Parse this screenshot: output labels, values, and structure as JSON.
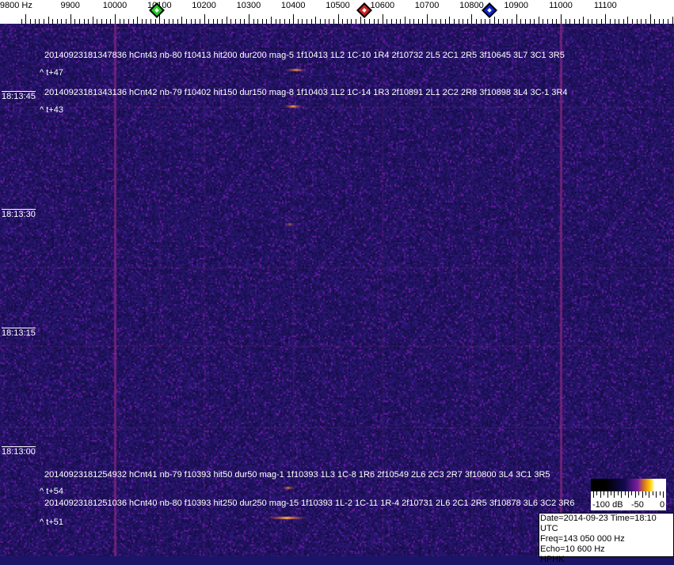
{
  "chart_data": {
    "type": "heatmap",
    "title": "",
    "x_axis": {
      "unit": "Hz",
      "range": [
        9780,
        11280
      ],
      "tick_labels": [
        "9800 Hz",
        "9900",
        "10000",
        "10100",
        "10200",
        "10300",
        "10400",
        "10500",
        "10600",
        "10700",
        "10800",
        "10900",
        "11000",
        "11100"
      ],
      "tick_values": [
        9800,
        9900,
        10000,
        10100,
        10200,
        10300,
        10400,
        10500,
        10600,
        10700,
        10800,
        10900,
        11000,
        11100
      ]
    },
    "y_axis": {
      "tick_labels": [
        "18:13:45",
        "18:13:30",
        "18:13:15",
        "18:13:00"
      ]
    },
    "markers": [
      {
        "freq": 10095,
        "color": "#22cc22"
      },
      {
        "freq": 10560,
        "color": "#cc2222"
      },
      {
        "freq": 10840,
        "color": "#1122cc"
      }
    ],
    "colorbar": {
      "labels": [
        "-100 dB",
        "-50",
        "0"
      ],
      "range_db": [
        -100,
        0
      ]
    },
    "colors": {
      "background": "#1c1466",
      "line": "#7a2a8a",
      "echo": "#ffa040"
    }
  },
  "annotations": [
    {
      "text": "20140923181347836 hCnt43 nb-80 f10413 hit200 dur200 mag-5 1f10413 1L2 1C-10 1R4 2f10732 2L5 2C1 2R5 3f10645 3L7 3C1 3R5",
      "tplus": "^ t+47"
    },
    {
      "text": "20140923181343136 hCnt42 nb-79 f10402 hit150 dur150 mag-8 1f10403 1L2 1C-14 1R3 2f10891 2L1 2C2 2R8 3f10898 3L4 3C-1 3R4",
      "tplus": "^ t+43"
    },
    {
      "text": "20140923181254932 hCnt41 nb-79 f10393 hit50 dur50 mag-1 1f10393 1L3 1C-8 1R6 2f10549 2L6 2C3 2R7 3f10800 3L4 3C1 3R5",
      "tplus": "^ t+54"
    },
    {
      "text": "20140923181251036 hCnt40 nb-80 f10393 hit250 dur250 mag-15 1f10393 1L-2 1C-11 1R-4 2f10731 2L6 2C1 2R5 3f10878 3L6 3C2 3R6",
      "tplus": "^ t+51"
    }
  ],
  "info": {
    "date_time": "Date=2014-09-23 Time=18:10 UTC",
    "freq": "Freq=143 050 000 Hz",
    "echo": "Echo=10 600 Hz",
    "station": "HPHK"
  }
}
